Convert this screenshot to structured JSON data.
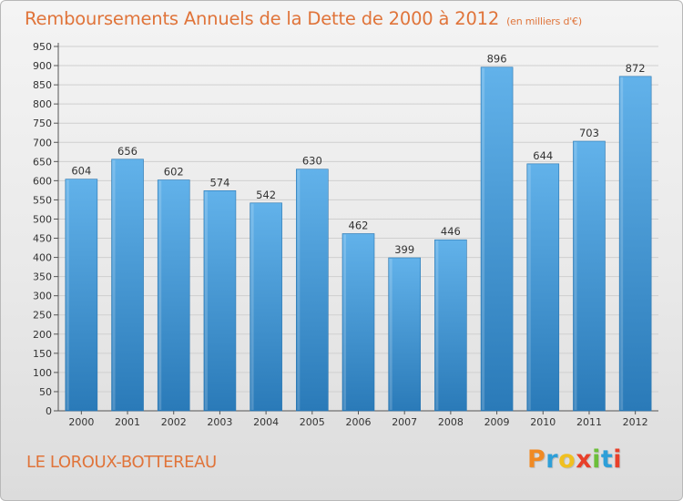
{
  "header": {
    "title": "Remboursements Annuels de la Dette de 2000 à 2012",
    "subtitle": "(en milliers d'€)"
  },
  "footer": {
    "place": "LE LOROUX-BOTTEREAU",
    "logo_text": "Proxiti",
    "logo_colors": [
      "#f08a24",
      "#2e9fd8",
      "#f0c020",
      "#e8402a",
      "#6cbf3a",
      "#2e9fd8",
      "#e8402a"
    ]
  },
  "colors": {
    "bar_top": "#62b2ea",
    "bar_bottom": "#2a7ab8",
    "text_orange": "#e0743a"
  },
  "chart_data": {
    "type": "bar",
    "categories": [
      "2000",
      "2001",
      "2002",
      "2003",
      "2004",
      "2005",
      "2006",
      "2007",
      "2008",
      "2009",
      "2010",
      "2011",
      "2012"
    ],
    "values": [
      604,
      656,
      602,
      574,
      542,
      630,
      462,
      399,
      446,
      896,
      644,
      703,
      872
    ],
    "title": "Remboursements Annuels de la Dette de 2000 à 2012",
    "ylim": [
      0,
      950
    ],
    "yticks": [
      0,
      50,
      100,
      150,
      200,
      250,
      300,
      350,
      400,
      450,
      500,
      550,
      600,
      650,
      700,
      750,
      800,
      850,
      900,
      950
    ],
    "grid": true,
    "legend": "none"
  }
}
